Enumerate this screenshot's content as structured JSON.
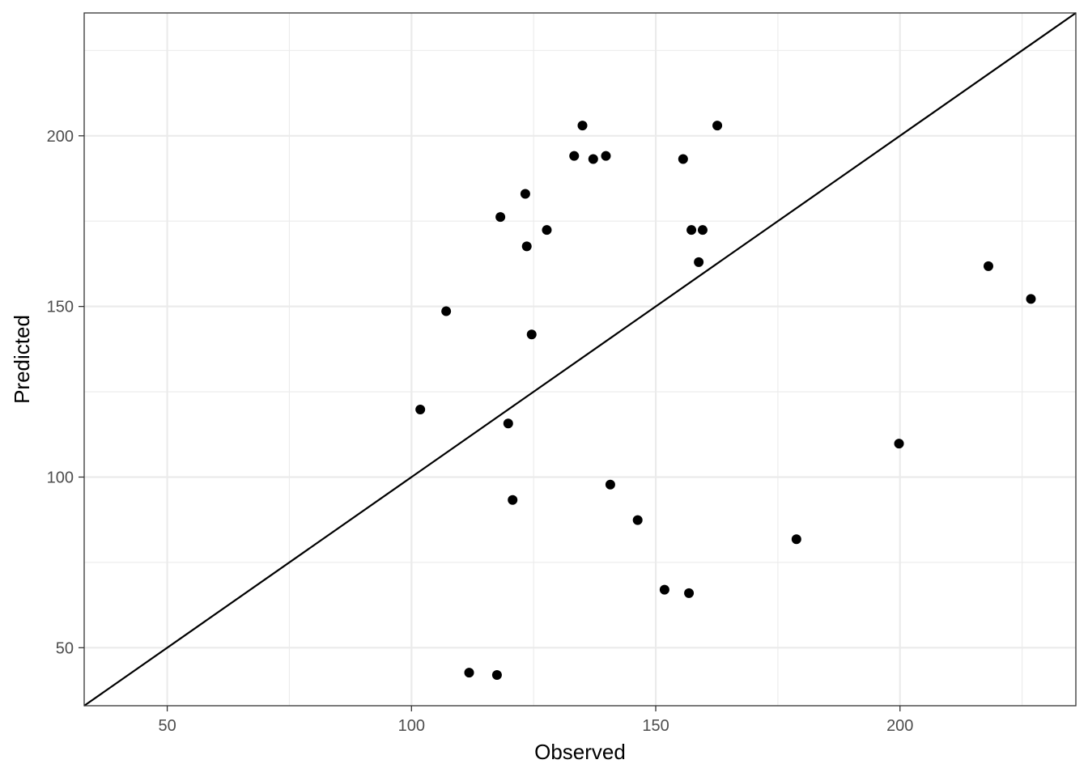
{
  "chart_data": {
    "type": "scatter",
    "title": "",
    "xlabel": "Observed",
    "ylabel": "Predicted",
    "xlim": [
      33,
      236
    ],
    "ylim": [
      33,
      236
    ],
    "x_ticks": [
      50,
      100,
      150,
      200
    ],
    "y_ticks": [
      50,
      100,
      150,
      200
    ],
    "x_tick_labels": [
      "50",
      "100",
      "150",
      "200"
    ],
    "y_tick_labels": [
      "50",
      "100",
      "150",
      "200"
    ],
    "grid": true,
    "reference_line": {
      "type": "identity",
      "slope": 1,
      "intercept": 0
    },
    "points": [
      {
        "x": 135.0,
        "y": 203.0
      },
      {
        "x": 162.6,
        "y": 203.0
      },
      {
        "x": 133.3,
        "y": 194.1
      },
      {
        "x": 137.2,
        "y": 193.2
      },
      {
        "x": 139.8,
        "y": 194.1
      },
      {
        "x": 155.6,
        "y": 193.2
      },
      {
        "x": 123.3,
        "y": 183.0
      },
      {
        "x": 118.2,
        "y": 176.2
      },
      {
        "x": 127.7,
        "y": 172.4
      },
      {
        "x": 157.3,
        "y": 172.4
      },
      {
        "x": 159.6,
        "y": 172.4
      },
      {
        "x": 123.6,
        "y": 167.6
      },
      {
        "x": 158.8,
        "y": 163.0
      },
      {
        "x": 107.1,
        "y": 148.6
      },
      {
        "x": 124.6,
        "y": 141.8
      },
      {
        "x": 101.8,
        "y": 119.8
      },
      {
        "x": 119.8,
        "y": 115.7
      },
      {
        "x": 120.7,
        "y": 93.3
      },
      {
        "x": 140.7,
        "y": 97.8
      },
      {
        "x": 146.3,
        "y": 87.4
      },
      {
        "x": 151.8,
        "y": 67.0
      },
      {
        "x": 156.8,
        "y": 66.0
      },
      {
        "x": 178.8,
        "y": 81.8
      },
      {
        "x": 199.8,
        "y": 109.8
      },
      {
        "x": 218.1,
        "y": 161.8
      },
      {
        "x": 226.8,
        "y": 152.2
      },
      {
        "x": 111.8,
        "y": 42.7
      },
      {
        "x": 117.5,
        "y": 42.0
      }
    ]
  }
}
